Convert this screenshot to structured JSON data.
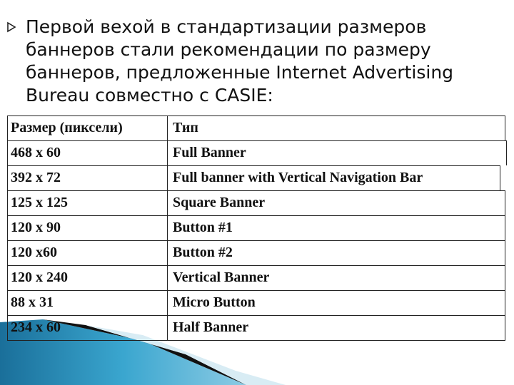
{
  "slide": {
    "bullet_icon": "triangle-right-outline-icon",
    "paragraph": "Первой вехой в стандартизации размеров баннеров стали рекомендации по размеру баннеров, предложенные Internet Advertising Bureau совместно с CASIE:",
    "paragraph_lines": [
      "Первой вехой в стандартизации размеров",
      "баннеров стали рекомендации по размеру",
      "баннеров, предложенные Internet Advertising",
      "Bureau совместно с CASIE:"
    ]
  },
  "table": {
    "headers": [
      "Размер (пиксели)",
      "Тип"
    ],
    "rows": [
      [
        "468 x 60",
        "Full Banner"
      ],
      [
        "392 x 72",
        "Full banner with Vertical Navigation Bar"
      ],
      [
        "125 x 125",
        "Square Banner"
      ],
      [
        "120 x 90",
        "Button #1"
      ],
      [
        "120 x60",
        "Button #2"
      ],
      [
        "120 x 240",
        "Vertical Banner"
      ],
      [
        "88 x 31",
        "Micro Button"
      ],
      [
        "234 x 60",
        "Half Banner"
      ]
    ]
  },
  "colors": {
    "accent": "#2a8fbd",
    "text": "#111111"
  }
}
